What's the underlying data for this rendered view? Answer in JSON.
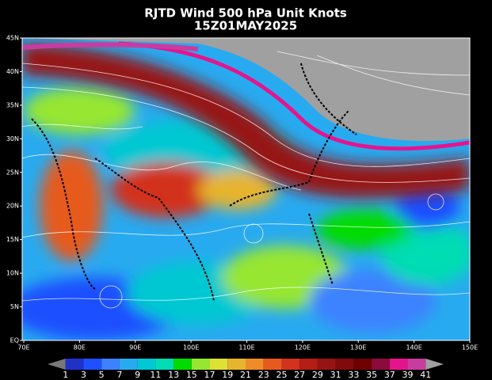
{
  "header": {
    "title": "RJTD Wind 500 hPa Unit Knots",
    "subtitle": "15Z01MAY2025"
  },
  "map": {
    "lat_labels": [
      "EQ",
      "5N",
      "10N",
      "15N",
      "20N",
      "25N",
      "30N",
      "35N",
      "40N",
      "45N"
    ],
    "lon_labels": [
      "70E",
      "80E",
      "90E",
      "100E",
      "110E",
      "120E",
      "130E",
      "140E",
      "150E"
    ]
  },
  "colorbar": {
    "levels": [
      1,
      3,
      5,
      7,
      9,
      11,
      13,
      15,
      17,
      19,
      21,
      23,
      25,
      27,
      29,
      31,
      33,
      35,
      37,
      39,
      41
    ],
    "colors": [
      "#787878",
      "#1e32c8",
      "#1e50ff",
      "#3c82ff",
      "#28aaf0",
      "#00c8d2",
      "#00dcb4",
      "#00dc00",
      "#96e632",
      "#dce132",
      "#e6b42d",
      "#f08c28",
      "#e65a1e",
      "#d2321e",
      "#b41e14",
      "#961414",
      "#820a0a",
      "#6e0000",
      "#8c0a3c",
      "#e6148c",
      "#c83ca0",
      "#a0a0a0"
    ]
  }
}
